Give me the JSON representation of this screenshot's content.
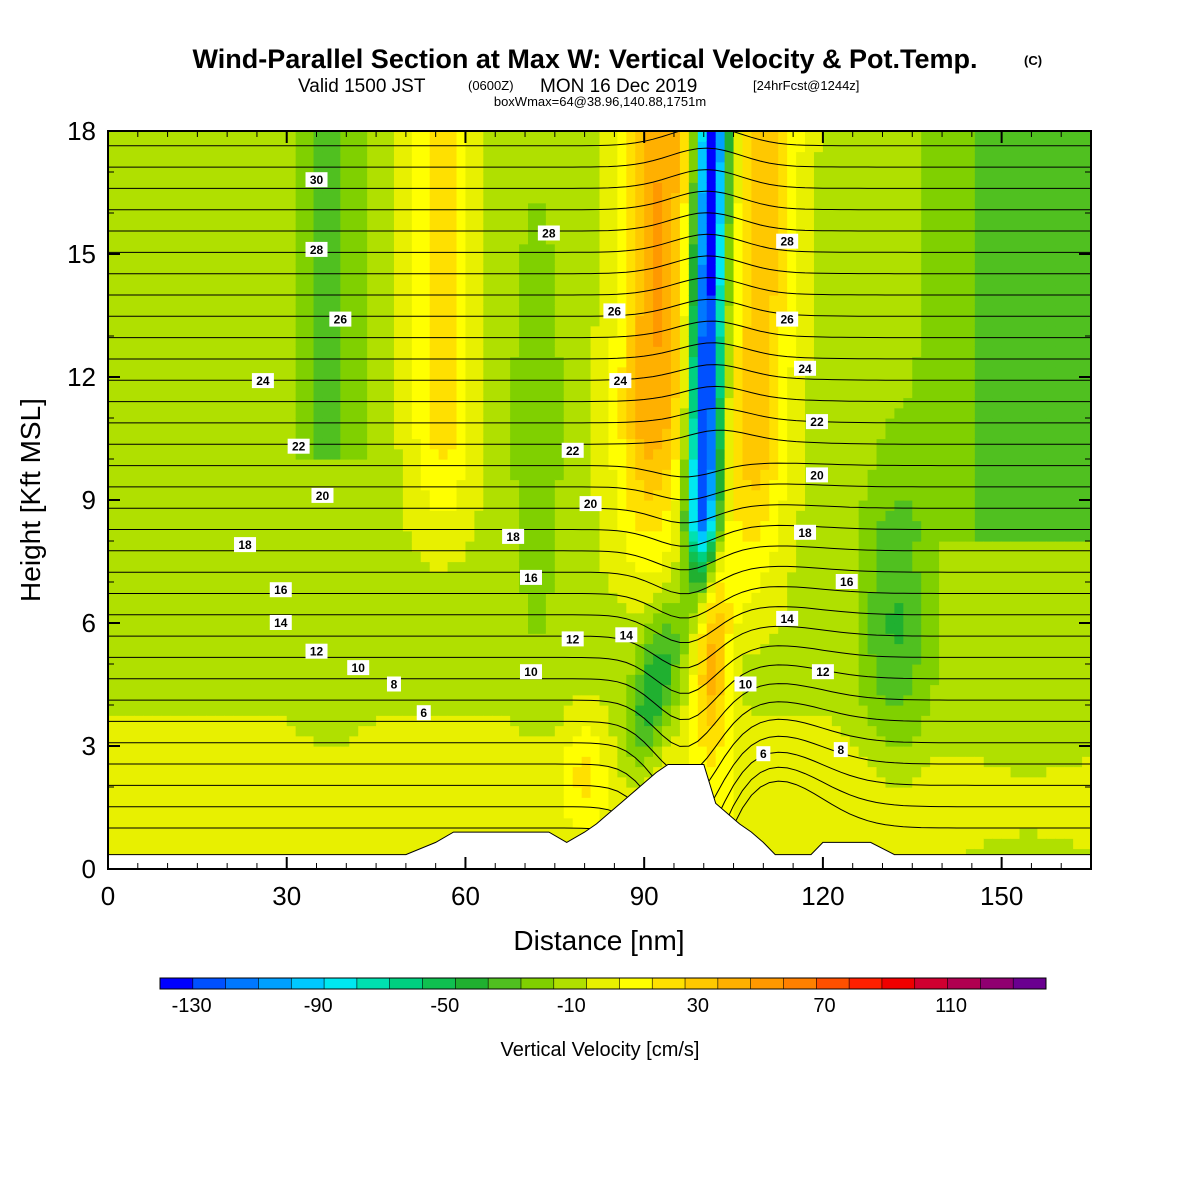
{
  "chart_data": {
    "type": "heatmap",
    "title": "Wind-Parallel Section at Max W: Vertical Velocity & Pot.Temp.",
    "title_mark": "(C)",
    "subtitle_main": "Valid 1500 JST",
    "subtitle_utc": "(0600Z)",
    "subtitle_date": "MON 16 Dec 2019",
    "subtitle_fcst": "[24hrFcst@1244z]",
    "subtitle_box": "boxWmax=64@38.96,140.88,1751m",
    "xlabel": "Distance [nm]",
    "ylabel": "Height [Kft MSL]",
    "xlim": [
      0,
      165
    ],
    "ylim": [
      0,
      18
    ],
    "x_ticks": [
      "0",
      "30",
      "60",
      "90",
      "120",
      "150"
    ],
    "y_ticks": [
      "0",
      "3",
      "6",
      "9",
      "12",
      "15",
      "18"
    ],
    "colorbar": {
      "label": "Vertical Velocity [cm/s]",
      "tick_labels": [
        "-130",
        "-90",
        "-50",
        "-10",
        "30",
        "70",
        "110"
      ],
      "colors": [
        "#0000ff",
        "#0050ff",
        "#0078ff",
        "#00a0ff",
        "#00c8ff",
        "#00e8f0",
        "#00e0b0",
        "#00d080",
        "#10c050",
        "#20b030",
        "#50c020",
        "#80d000",
        "#b0e000",
        "#e8f000",
        "#ffff00",
        "#ffe000",
        "#ffc800",
        "#ffb000",
        "#ff9800",
        "#ff8000",
        "#ff5000",
        "#ff2000",
        "#f00000",
        "#d00030",
        "#b00050",
        "#900070",
        "#6a0090"
      ],
      "bounds": [
        -140,
        140
      ]
    },
    "terrain_kft": [
      [
        0,
        0.35
      ],
      [
        5,
        0.35
      ],
      [
        10,
        0.35
      ],
      [
        15,
        0.35
      ],
      [
        20,
        0.35
      ],
      [
        25,
        0.35
      ],
      [
        30,
        0.35
      ],
      [
        35,
        0.35
      ],
      [
        40,
        0.35
      ],
      [
        45,
        0.35
      ],
      [
        50,
        0.35
      ],
      [
        55,
        0.65
      ],
      [
        58,
        0.9
      ],
      [
        62,
        0.9
      ],
      [
        66,
        0.9
      ],
      [
        70,
        0.9
      ],
      [
        74,
        0.9
      ],
      [
        77,
        0.65
      ],
      [
        80,
        0.9
      ],
      [
        82,
        1.1
      ],
      [
        84,
        1.35
      ],
      [
        86,
        1.6
      ],
      [
        88,
        1.85
      ],
      [
        90,
        2.1
      ],
      [
        92,
        2.35
      ],
      [
        94,
        2.55
      ],
      [
        96,
        2.55
      ],
      [
        98,
        2.55
      ],
      [
        100,
        2.55
      ],
      [
        102,
        1.6
      ],
      [
        104,
        1.35
      ],
      [
        106,
        1.1
      ],
      [
        108,
        0.9
      ],
      [
        110,
        0.65
      ],
      [
        112,
        0.35
      ],
      [
        118,
        0.35
      ],
      [
        120,
        0.65
      ],
      [
        124,
        0.65
      ],
      [
        128,
        0.65
      ],
      [
        132,
        0.35
      ],
      [
        140,
        0.35
      ],
      [
        150,
        0.35
      ],
      [
        160,
        0.35
      ],
      [
        165,
        0.35
      ]
    ],
    "contour_labels": [
      {
        "text": "30",
        "x": 35,
        "z": 16.8
      },
      {
        "text": "28",
        "x": 35,
        "z": 15.1
      },
      {
        "text": "26",
        "x": 39,
        "z": 13.4
      },
      {
        "text": "24",
        "x": 26,
        "z": 11.9
      },
      {
        "text": "22",
        "x": 32,
        "z": 10.3
      },
      {
        "text": "20",
        "x": 36,
        "z": 9.1
      },
      {
        "text": "18",
        "x": 23,
        "z": 7.9
      },
      {
        "text": "16",
        "x": 29,
        "z": 6.8
      },
      {
        "text": "14",
        "x": 29,
        "z": 6.0
      },
      {
        "text": "12",
        "x": 35,
        "z": 5.3
      },
      {
        "text": "10",
        "x": 42,
        "z": 4.9
      },
      {
        "text": "8",
        "x": 48,
        "z": 4.5
      },
      {
        "text": "6",
        "x": 53,
        "z": 3.8
      },
      {
        "text": "28",
        "x": 74,
        "z": 15.5
      },
      {
        "text": "26",
        "x": 85,
        "z": 13.6
      },
      {
        "text": "24",
        "x": 86,
        "z": 11.9
      },
      {
        "text": "22",
        "x": 78,
        "z": 10.2
      },
      {
        "text": "20",
        "x": 81,
        "z": 8.9
      },
      {
        "text": "18",
        "x": 68,
        "z": 8.1
      },
      {
        "text": "16",
        "x": 71,
        "z": 7.1
      },
      {
        "text": "12",
        "x": 78,
        "z": 5.6
      },
      {
        "text": "14",
        "x": 87,
        "z": 5.7
      },
      {
        "text": "10",
        "x": 71,
        "z": 4.8
      },
      {
        "text": "28",
        "x": 114,
        "z": 15.3
      },
      {
        "text": "26",
        "x": 114,
        "z": 13.4
      },
      {
        "text": "24",
        "x": 117,
        "z": 12.2
      },
      {
        "text": "22",
        "x": 119,
        "z": 10.9
      },
      {
        "text": "20",
        "x": 119,
        "z": 9.6
      },
      {
        "text": "18",
        "x": 117,
        "z": 8.2
      },
      {
        "text": "16",
        "x": 124,
        "z": 7.0
      },
      {
        "text": "14",
        "x": 114,
        "z": 6.1
      },
      {
        "text": "12",
        "x": 120,
        "z": 4.8
      },
      {
        "text": "10",
        "x": 107,
        "z": 4.5
      },
      {
        "text": "8",
        "x": 123,
        "z": 2.9
      },
      {
        "text": "6",
        "x": 110,
        "z": 2.8
      }
    ]
  }
}
